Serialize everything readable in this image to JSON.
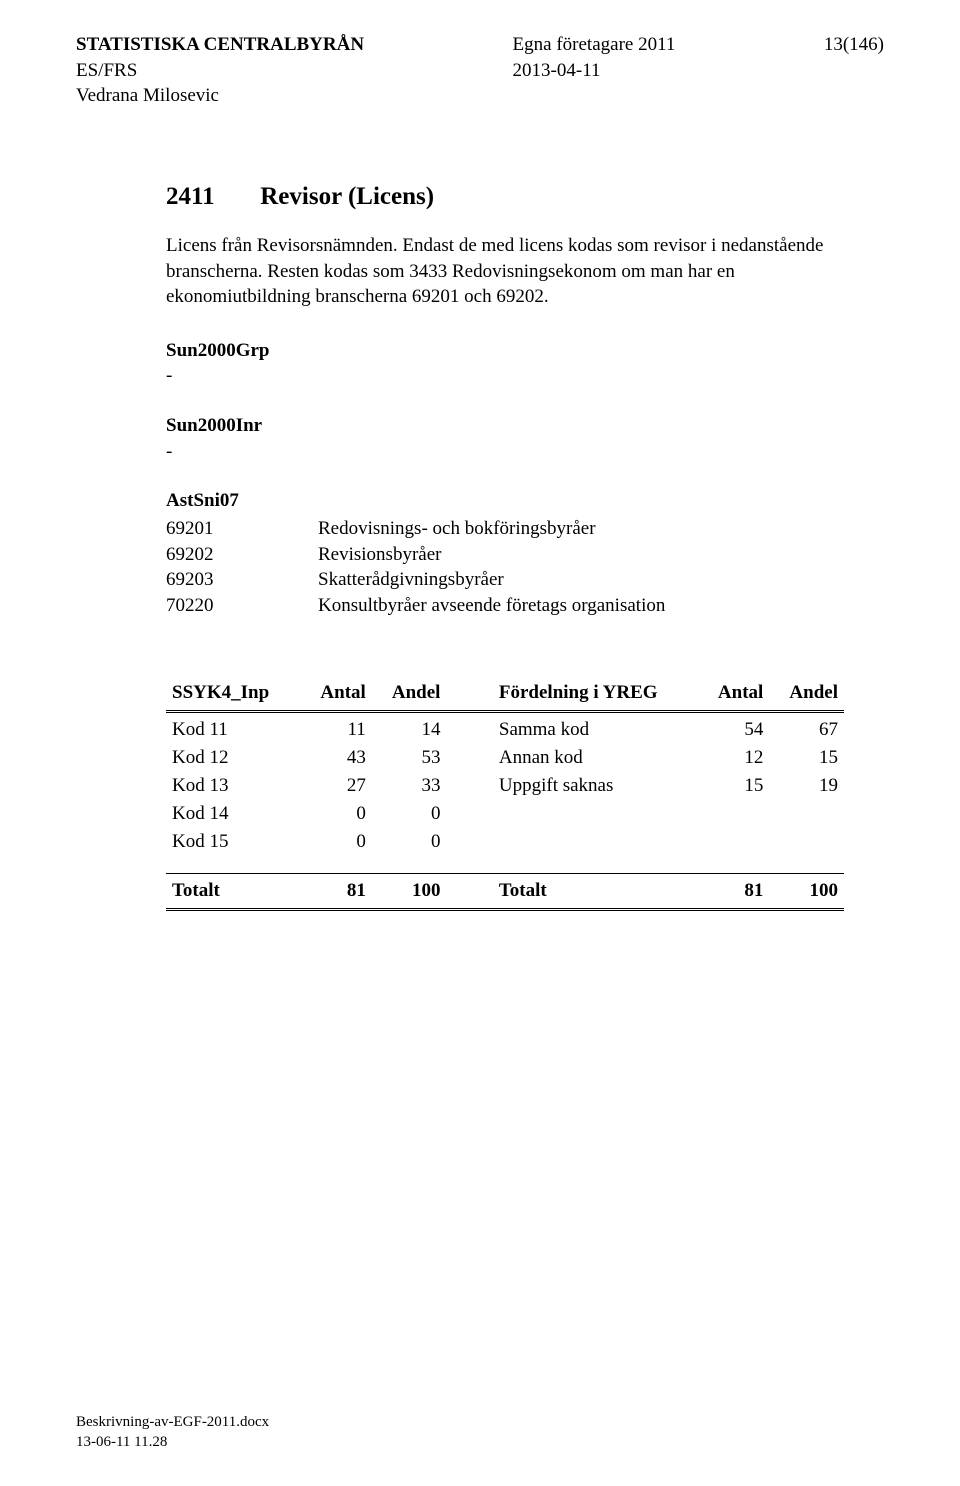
{
  "header": {
    "org": "STATISTISKA CENTRALBYRÅN",
    "dept": "ES/FRS",
    "author": "Vedrana Milosevic",
    "title": "Egna företagare 2011",
    "date": "2013-04-11",
    "page": "13(146)"
  },
  "section": {
    "code": "2411",
    "title": "Revisor  (Licens)"
  },
  "intro": "Licens från Revisorsnämnden. Endast de med licens kodas som revisor i nedanstående branscherna. Resten kodas som 3433 Redovisningsekonom om man har en ekonomiutbildning branscherna 69201 och 69202.",
  "groups": {
    "sun2000grp_label": "Sun2000Grp",
    "sun2000grp_value": "-",
    "sun2000inr_label": "Sun2000Inr",
    "sun2000inr_value": "-",
    "astsni_label": "AstSni07",
    "ast": [
      {
        "code": "69201",
        "text": "Redovisnings- och bokföringsbyråer"
      },
      {
        "code": "69202",
        "text": "Revisionsbyråer"
      },
      {
        "code": "69203",
        "text": "Skatterådgivningsbyråer"
      },
      {
        "code": "70220",
        "text": "Konsultbyråer avseende företags organisation"
      }
    ]
  },
  "table": {
    "headers": {
      "ssyk": "SSYK4_Inp",
      "antal": "Antal",
      "andel": "Andel",
      "fd": "Fördelning i YREG",
      "antal2": "Antal",
      "andel2": "Andel"
    },
    "rows": [
      {
        "label": "Kod 11",
        "antal": "11",
        "andel": "14",
        "fd": "Samma kod",
        "antal2": "54",
        "andel2": "67"
      },
      {
        "label": "Kod 12",
        "antal": "43",
        "andel": "53",
        "fd": "Annan kod",
        "antal2": "12",
        "andel2": "15"
      },
      {
        "label": "Kod 13",
        "antal": "27",
        "andel": "33",
        "fd": "Uppgift saknas",
        "antal2": "15",
        "andel2": "19"
      },
      {
        "label": "Kod 14",
        "antal": "0",
        "andel": "0",
        "fd": "",
        "antal2": "",
        "andel2": ""
      },
      {
        "label": "Kod 15",
        "antal": "0",
        "andel": "0",
        "fd": "",
        "antal2": "",
        "andel2": ""
      }
    ],
    "totals": {
      "label": "Totalt",
      "antal": "81",
      "andel": "100",
      "fd": "Totalt",
      "antal2": "81",
      "andel2": "100"
    }
  },
  "footer": {
    "file": "Beskrivning-av-EGF-2011.docx",
    "stamp": "13-06-11 11.28"
  }
}
